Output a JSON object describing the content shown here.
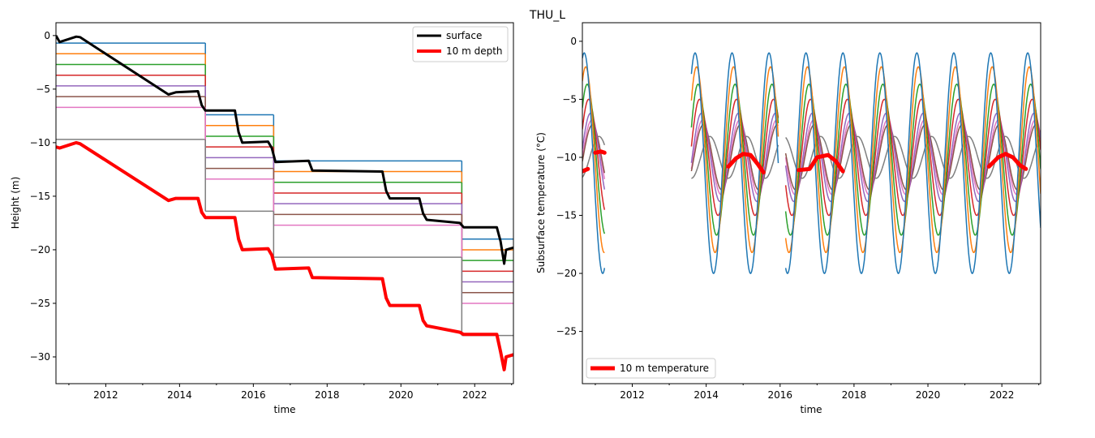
{
  "figure": {
    "title": "THU_L"
  },
  "colors": {
    "C0": "#1f77b4",
    "C1": "#ff7f0e",
    "C2": "#2ca02c",
    "C3": "#d62728",
    "C4": "#9467bd",
    "C5": "#8c564b",
    "C6": "#e377c2",
    "C7": "#7f7f7f",
    "surface": "#000000",
    "depth10": "#ff0000"
  },
  "chart_data": [
    {
      "type": "line",
      "title": "",
      "xlabel": "time",
      "ylabel": "Height (m)",
      "xlim": [
        2010.65,
        2023.05
      ],
      "ylim": [
        -32.5,
        1.2
      ],
      "xticks": [
        2012,
        2014,
        2016,
        2018,
        2020,
        2022
      ],
      "yticks": [
        0,
        -5,
        -10,
        -15,
        -20,
        -25,
        -30
      ],
      "legend": {
        "position": "top-right",
        "entries": [
          "surface",
          "10 m depth"
        ]
      },
      "grid": false,
      "series": [
        {
          "name": "surface",
          "color": "surface",
          "width": 3,
          "points": [
            [
              2010.65,
              0
            ],
            [
              2010.75,
              -0.6
            ],
            [
              2011.2,
              -0.1
            ],
            [
              2011.3,
              -0.15
            ],
            [
              2013.7,
              -5.5
            ],
            [
              2013.9,
              -5.3
            ],
            [
              2014.5,
              -5.2
            ],
            [
              2014.6,
              -6.5
            ],
            [
              2014.7,
              -7.0
            ],
            [
              2015.5,
              -7.0
            ],
            [
              2015.6,
              -9.0
            ],
            [
              2015.7,
              -10.0
            ],
            [
              2016.4,
              -9.9
            ],
            [
              2016.5,
              -10.5
            ],
            [
              2016.6,
              -11.8
            ],
            [
              2017.5,
              -11.7
            ],
            [
              2017.6,
              -12.6
            ],
            [
              2019.5,
              -12.7
            ],
            [
              2019.6,
              -14.5
            ],
            [
              2019.7,
              -15.2
            ],
            [
              2020.5,
              -15.2
            ],
            [
              2020.6,
              -16.6
            ],
            [
              2020.7,
              -17.2
            ],
            [
              2021.6,
              -17.5
            ],
            [
              2021.7,
              -17.9
            ],
            [
              2022.6,
              -17.9
            ],
            [
              2022.7,
              -19.2
            ],
            [
              2022.8,
              -21.3
            ],
            [
              2022.85,
              -20.0
            ],
            [
              2023.05,
              -19.8
            ]
          ]
        },
        {
          "name": "10 m depth",
          "color": "depth10",
          "width": 4,
          "points": [
            [
              2010.65,
              -10.4
            ],
            [
              2010.75,
              -10.5
            ],
            [
              2011.2,
              -10.0
            ],
            [
              2011.3,
              -10.1
            ],
            [
              2013.7,
              -15.4
            ],
            [
              2013.9,
              -15.2
            ],
            [
              2014.5,
              -15.2
            ],
            [
              2014.6,
              -16.5
            ],
            [
              2014.7,
              -17.0
            ],
            [
              2015.5,
              -17.0
            ],
            [
              2015.6,
              -19.0
            ],
            [
              2015.7,
              -20.0
            ],
            [
              2016.4,
              -19.9
            ],
            [
              2016.5,
              -20.5
            ],
            [
              2016.6,
              -21.8
            ],
            [
              2017.5,
              -21.7
            ],
            [
              2017.6,
              -22.6
            ],
            [
              2019.5,
              -22.7
            ],
            [
              2019.6,
              -24.5
            ],
            [
              2019.7,
              -25.2
            ],
            [
              2020.5,
              -25.2
            ],
            [
              2020.6,
              -26.6
            ],
            [
              2020.7,
              -27.1
            ],
            [
              2021.6,
              -27.7
            ],
            [
              2021.7,
              -27.9
            ],
            [
              2022.6,
              -27.9
            ],
            [
              2022.7,
              -29.5
            ],
            [
              2022.8,
              -31.2
            ],
            [
              2022.85,
              -30.0
            ],
            [
              2023.05,
              -29.8
            ]
          ]
        }
      ],
      "sensor_steps": [
        {
          "x": [
            2010.65,
            2014.7
          ],
          "tops": -0.7,
          "levels": [
            -0.7,
            -1.7,
            -2.7,
            -3.7,
            -4.7,
            -5.7,
            -6.7,
            -9.7
          ]
        },
        {
          "x": [
            2014.7,
            2016.55
          ],
          "tops": -7.4,
          "levels": [
            -7.4,
            -8.4,
            -9.4,
            -10.4,
            -11.4,
            -12.4,
            -13.4,
            -16.4
          ]
        },
        {
          "x": [
            2016.55,
            2021.65
          ],
          "tops": -11.7,
          "levels": [
            -11.7,
            -12.7,
            -13.7,
            -14.7,
            -15.7,
            -16.7,
            -17.7,
            -20.7
          ]
        },
        {
          "x": [
            2021.65,
            2023.05
          ],
          "tops": -19.0,
          "levels": [
            -19.0,
            -20.0,
            -21.0,
            -22.0,
            -23.0,
            -24.0,
            -25.0,
            -28.0
          ]
        }
      ]
    },
    {
      "type": "line",
      "title": "",
      "xlabel": "time",
      "ylabel": "Subsurface temperature (°C)",
      "xlim": [
        2010.65,
        2023.05
      ],
      "ylim": [
        -29.5,
        1.6
      ],
      "xticks": [
        2012,
        2014,
        2016,
        2018,
        2020,
        2022
      ],
      "yticks": [
        0,
        -5,
        -10,
        -15,
        -20,
        -25
      ],
      "legend": {
        "position": "bottom-left",
        "entries": [
          "10 m temperature"
        ]
      },
      "grid": false,
      "sensors": [
        {
          "color": "C0",
          "mean": -10.5,
          "amp": 9.5,
          "lag": 0.0
        },
        {
          "color": "C1",
          "mean": -10.2,
          "amp": 8.0,
          "lag": 0.04
        },
        {
          "color": "C2",
          "mean": -10.2,
          "amp": 6.5,
          "lag": 0.08
        },
        {
          "color": "C3",
          "mean": -10.0,
          "amp": 5.0,
          "lag": 0.12
        },
        {
          "color": "C4",
          "mean": -10.0,
          "amp": 3.8,
          "lag": 0.17
        },
        {
          "color": "C5",
          "mean": -10.0,
          "amp": 2.8,
          "lag": 0.22
        },
        {
          "color": "C6",
          "mean": -10.0,
          "amp": 3.2,
          "lag": 0.2
        },
        {
          "color": "C7",
          "mean": -10.0,
          "amp": 1.8,
          "lag": 0.4
        }
      ],
      "segments": [
        [
          2010.65,
          2011.25
        ],
        [
          2013.6,
          2015.95
        ],
        [
          2016.15,
          2023.05
        ]
      ],
      "temp10m": {
        "name": "10 m temperature",
        "color": "depth10",
        "segments": [
          [
            [
              2010.65,
              -11.2
            ],
            [
              2010.8,
              -11.0
            ]
          ],
          [
            [
              2011.0,
              -9.6
            ],
            [
              2011.15,
              -9.5
            ],
            [
              2011.25,
              -9.6
            ]
          ],
          [
            [
              2014.6,
              -10.8
            ],
            [
              2014.8,
              -10.1
            ],
            [
              2015.0,
              -9.7
            ],
            [
              2015.2,
              -9.8
            ],
            [
              2015.4,
              -10.6
            ],
            [
              2015.55,
              -11.3
            ]
          ],
          [
            [
              2016.5,
              -11.1
            ],
            [
              2016.8,
              -11.0
            ],
            [
              2017.0,
              -10.0
            ],
            [
              2017.3,
              -9.8
            ],
            [
              2017.5,
              -10.3
            ],
            [
              2017.7,
              -11.2
            ]
          ],
          [
            [
              2021.65,
              -10.8
            ],
            [
              2021.9,
              -10.0
            ],
            [
              2022.1,
              -9.7
            ],
            [
              2022.3,
              -10.0
            ],
            [
              2022.5,
              -10.7
            ],
            [
              2022.65,
              -11.0
            ]
          ]
        ]
      }
    }
  ]
}
